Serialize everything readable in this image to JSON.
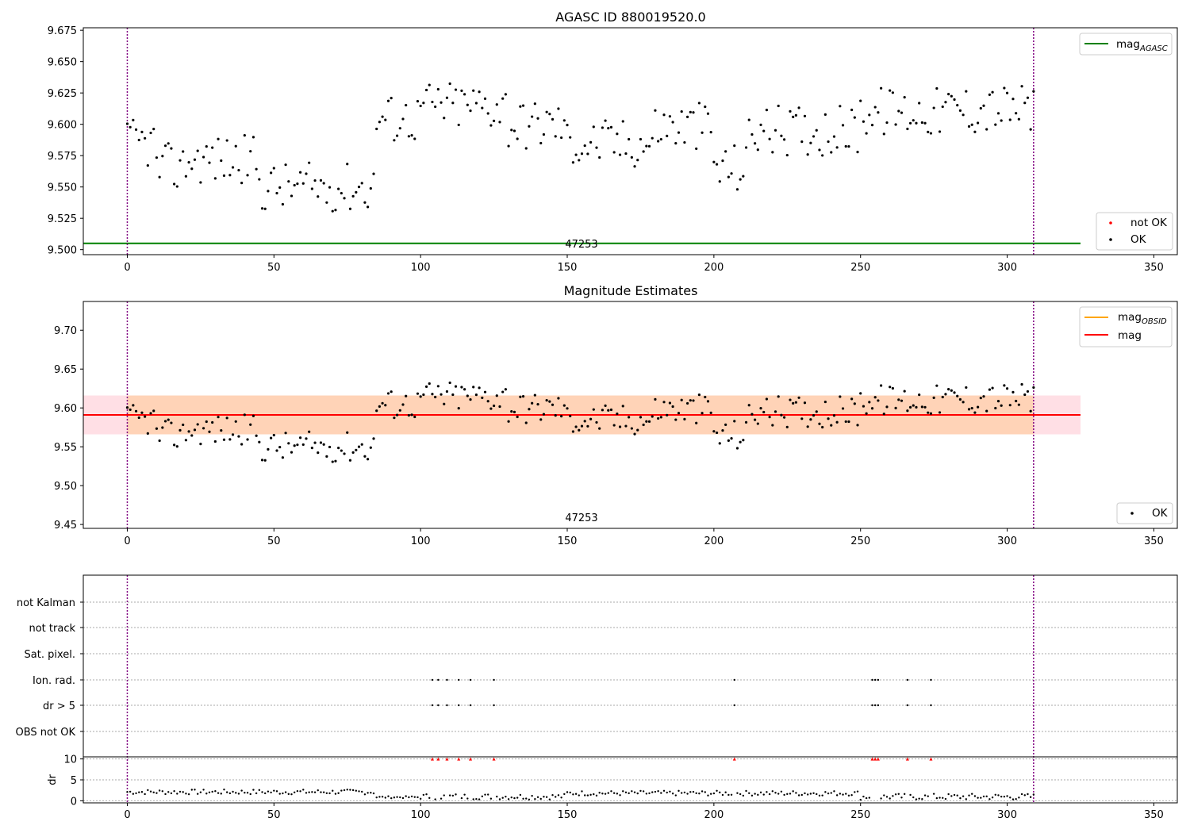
{
  "chart_data": [
    {
      "type": "scatter",
      "title": "AGASC ID 880019520.0",
      "xlim": [
        -15,
        358
      ],
      "ylim": [
        9.496,
        9.677
      ],
      "xticks": [
        0,
        50,
        100,
        150,
        200,
        250,
        300,
        350
      ],
      "yticks": [
        "9.500",
        "9.525",
        "9.550",
        "9.575",
        "9.600",
        "9.625",
        "9.650",
        "9.675"
      ],
      "mag_agasc": 9.505,
      "mag_agasc_x_range": [
        -15,
        325
      ],
      "obsid_label": "47253",
      "vlines": [
        0,
        309
      ],
      "series": [
        {
          "name": "not OK",
          "color": "#ff0000",
          "values": []
        },
        {
          "name": "OK",
          "color": "#000000",
          "values": "magnitude series (see series_points)"
        }
      ],
      "legend_line": {
        "name": "mag",
        "subscript": "AGASC",
        "color": "#008000"
      },
      "legend_points": [
        {
          "name": "not OK",
          "color": "#ff0000"
        },
        {
          "name": "OK",
          "color": "#000000"
        }
      ]
    },
    {
      "type": "scatter",
      "title": "Magnitude Estimates",
      "xlim": [
        -15,
        358
      ],
      "ylim": [
        9.445,
        9.737
      ],
      "xticks": [
        0,
        50,
        100,
        150,
        200,
        250,
        300,
        350
      ],
      "yticks": [
        "9.45",
        "9.50",
        "9.55",
        "9.60",
        "9.65",
        "9.70"
      ],
      "mag": 9.591,
      "mag_band": [
        9.566,
        9.616
      ],
      "obsid_band": [
        9.566,
        9.616
      ],
      "band_x_range": [
        -15,
        325
      ],
      "obsid_label": "47253",
      "vlines": [
        0,
        309
      ],
      "legend_lines": [
        {
          "name": "mag",
          "subscript": "OBSID",
          "color": "#ffa500"
        },
        {
          "name": "mag",
          "subscript": "",
          "color": "#ff0000"
        }
      ],
      "legend_points": [
        {
          "name": "OK",
          "color": "#000000"
        }
      ]
    },
    {
      "type": "scatter",
      "title": "",
      "xlim": [
        -15,
        358
      ],
      "xticks": [
        0,
        50,
        100,
        150,
        200,
        250,
        300,
        350
      ],
      "flag_labels": [
        "not Kalman",
        "not track",
        "Sat. pixel.",
        "Ion. rad.",
        "dr > 5",
        "OBS not OK"
      ],
      "flag_points": {
        "Ion. rad.": [
          104,
          106,
          109,
          113,
          117,
          125,
          207,
          254,
          255,
          256,
          266,
          274
        ],
        "dr > 5": [
          104,
          106,
          109,
          113,
          117,
          125,
          207,
          254,
          255,
          256,
          266,
          274
        ]
      },
      "dr_ylabel": "dr",
      "dr_yticks": [
        "0",
        "5",
        "10"
      ],
      "dr_ylim": [
        -0.5,
        10.5
      ],
      "dr_high_points": [
        104,
        106,
        109,
        113,
        117,
        125,
        207,
        254,
        255,
        256,
        266,
        274
      ],
      "vlines": [
        0,
        309
      ]
    }
  ]
}
